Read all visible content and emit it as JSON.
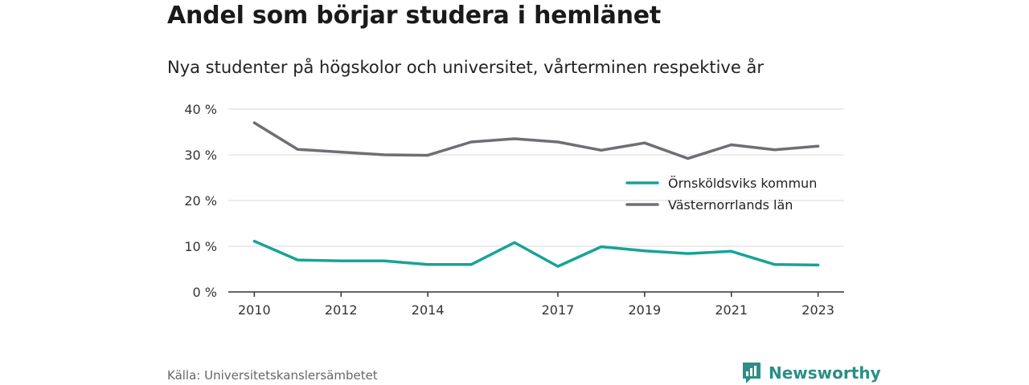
{
  "title": "Andel som börjar studera i hemlänet",
  "subtitle": "Nya studenter på högskolor och universitet, vårterminen respektive år",
  "source": "Källa: Universitetskanslersämbetet",
  "brand": "Newsworthy",
  "colors": {
    "accent": "#17a398",
    "secondary": "#6e6e74",
    "brand": "#2a8f86",
    "grid": "#d9d9d9"
  },
  "chart_data": {
    "type": "line",
    "title": "Andel som börjar studera i hemlänet",
    "subtitle": "Nya studenter på högskolor och universitet, vårterminen respektive år",
    "x": [
      2010,
      2011,
      2012,
      2013,
      2014,
      2015,
      2016,
      2017,
      2018,
      2019,
      2020,
      2021,
      2022,
      2023
    ],
    "x_ticks": [
      2010,
      2012,
      2014,
      2017,
      2019,
      2021,
      2023
    ],
    "y_ticks": [
      0,
      10,
      20,
      30,
      40
    ],
    "y_tick_labels": [
      "0 %",
      "10 %",
      "20 %",
      "30 %",
      "40 %"
    ],
    "ylim": [
      0,
      40
    ],
    "grid": true,
    "legend_position": "right",
    "series": [
      {
        "name": "Örnsköldsviks kommun",
        "color": "#17a398",
        "values": [
          11.1,
          7.0,
          6.8,
          6.8,
          6.0,
          6.0,
          10.8,
          5.6,
          9.9,
          9.0,
          8.4,
          8.9,
          6.0,
          5.9
        ]
      },
      {
        "name": "Västernorrlands län",
        "color": "#6e6e74",
        "values": [
          37.0,
          31.2,
          30.6,
          30.0,
          29.9,
          32.8,
          33.5,
          32.8,
          31.0,
          32.6,
          29.2,
          32.2,
          31.1,
          31.9
        ]
      }
    ]
  }
}
